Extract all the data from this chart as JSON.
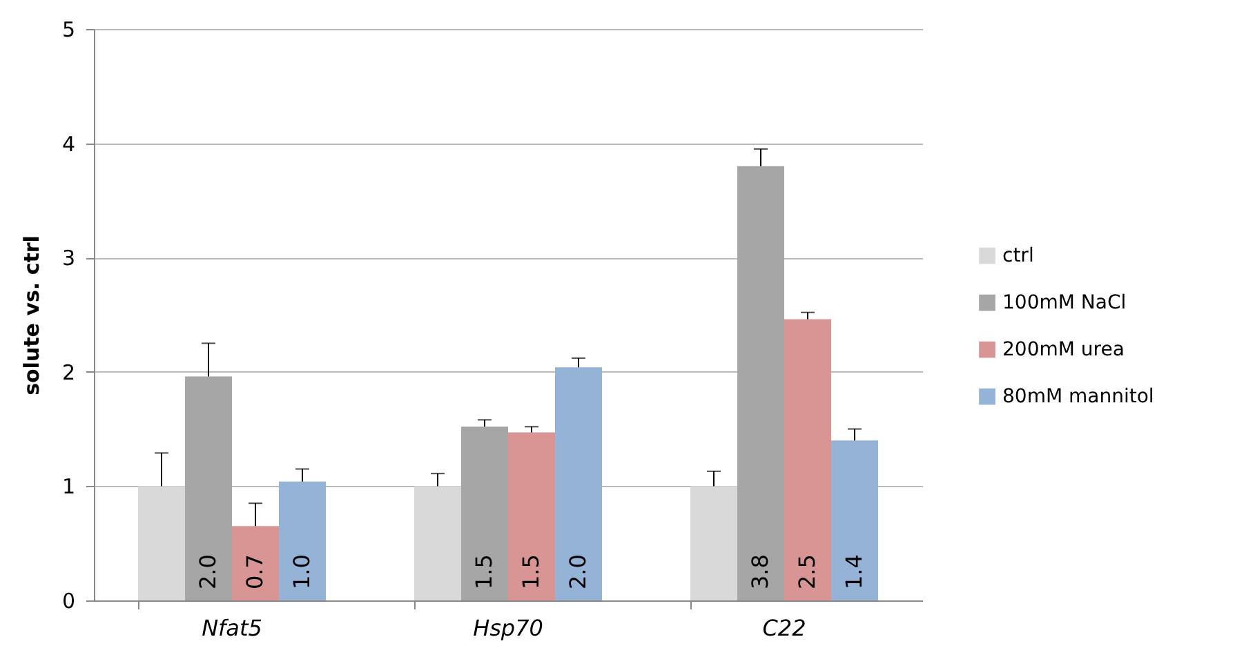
{
  "chart_data": {
    "type": "bar",
    "ylabel": "solute vs. ctrl",
    "categories": [
      "Nfat5",
      "Hsp70",
      "C22"
    ],
    "ylim": [
      0,
      5
    ],
    "yticks": [
      0,
      1,
      2,
      3,
      4,
      5
    ],
    "grid": "y",
    "legend": "right",
    "series": [
      {
        "name": "ctrl",
        "color": "#d9d9d9",
        "values": [
          1.0,
          1.0,
          1.0
        ],
        "errors": [
          [
            1.0,
            1.29
          ],
          [
            1.0,
            1.11
          ],
          [
            1.0,
            1.13
          ]
        ]
      },
      {
        "name": "100mM NaCl",
        "color": "#a6a6a6",
        "values": [
          1.96,
          1.52,
          3.8
        ],
        "errors": [
          [
            1.96,
            2.25
          ],
          [
            1.52,
            1.58
          ],
          [
            3.8,
            3.95
          ]
        ],
        "value_labels": [
          "2.0",
          "1.5",
          "3.8"
        ]
      },
      {
        "name": "200mM urea",
        "color": "#d99594",
        "values": [
          0.65,
          1.47,
          2.46
        ],
        "errors": [
          [
            0.65,
            0.85
          ],
          [
            1.47,
            1.52
          ],
          [
            2.46,
            2.52
          ]
        ],
        "value_labels": [
          "0.7",
          "1.5",
          "2.5"
        ]
      },
      {
        "name": "80mM mannitol",
        "color": "#95b3d7",
        "values": [
          1.04,
          2.04,
          1.4
        ],
        "errors": [
          [
            1.04,
            1.15
          ],
          [
            2.04,
            2.12
          ],
          [
            1.4,
            1.5
          ]
        ],
        "value_labels": [
          "1.0",
          "2.0",
          "1.4"
        ]
      }
    ]
  }
}
